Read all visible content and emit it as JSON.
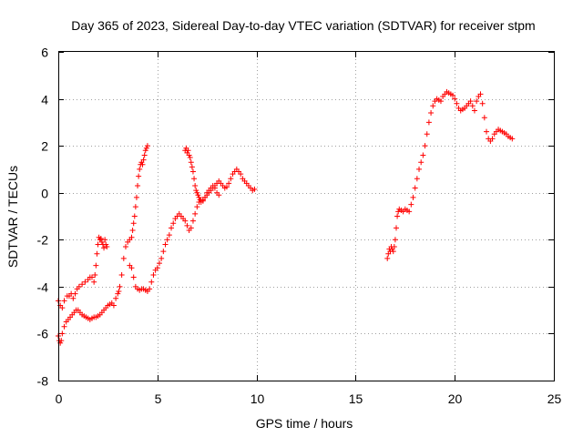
{
  "chart_data": {
    "type": "scatter",
    "title": "Day 365 of 2023, Sidereal Day-to-day VTEC variation (SDTVAR) for receiver stpm",
    "xlabel": "GPS time / hours",
    "ylabel": "SDTVAR / TECUs",
    "xlim": [
      0,
      25
    ],
    "ylim": [
      -8,
      6
    ],
    "xticks": [
      0,
      5,
      10,
      15,
      20,
      25
    ],
    "yticks": [
      -8,
      -6,
      -4,
      -2,
      0,
      2,
      4,
      6
    ],
    "xtick_labels": [
      "0",
      "5",
      "10",
      "15",
      "20",
      "25"
    ],
    "ytick_labels": [
      "-8",
      "-6",
      "-4",
      "-2",
      "0",
      "2",
      "4",
      "6"
    ],
    "grid": true,
    "legend": "none",
    "marker": "plus",
    "color": "#ff0000",
    "series": [
      {
        "x": [
          0.0,
          0.1,
          0.2,
          0.3,
          0.45,
          0.55,
          0.65,
          0.75,
          0.85,
          0.95,
          1.05,
          1.2,
          1.35,
          1.5,
          1.6,
          1.7,
          1.8,
          1.85,
          1.9,
          1.95,
          2.0,
          2.05,
          2.1,
          2.15,
          2.2,
          2.25,
          2.3,
          2.35,
          2.4,
          2.45
        ],
        "y": [
          -4.6,
          -4.8,
          -4.9,
          -4.6,
          -4.4,
          -4.4,
          -4.3,
          -4.5,
          -4.3,
          -4.1,
          -4.0,
          -3.9,
          -3.8,
          -3.7,
          -3.6,
          -3.6,
          -3.8,
          -3.5,
          -3.1,
          -2.6,
          -2.2,
          -1.9,
          -2.0,
          -1.95,
          -2.1,
          -2.2,
          -2.35,
          -2.0,
          -2.2,
          -2.3
        ]
      },
      {
        "x": [
          0.0,
          0.05,
          0.1,
          0.15,
          0.2,
          0.3,
          0.4,
          0.5,
          0.6,
          0.7,
          0.8,
          0.9,
          1.0,
          1.1,
          1.2,
          1.3,
          1.4,
          1.5,
          1.6,
          1.7,
          1.8,
          1.9,
          2.0,
          2.1,
          2.2,
          2.3,
          2.4,
          2.5,
          2.6,
          2.7,
          2.8,
          2.9,
          3.0,
          3.05,
          3.1,
          3.2,
          3.3,
          3.4,
          3.5,
          3.6,
          3.7,
          3.75,
          3.8,
          3.85,
          3.9,
          3.95,
          4.0,
          4.05,
          4.1,
          4.15,
          4.2,
          4.25,
          4.3,
          4.35,
          4.4,
          4.45,
          4.5
        ],
        "y": [
          -6.1,
          -6.3,
          -6.4,
          -6.3,
          -6.0,
          -5.7,
          -5.5,
          -5.4,
          -5.3,
          -5.2,
          -5.1,
          -5.0,
          -5.0,
          -5.1,
          -5.2,
          -5.25,
          -5.3,
          -5.35,
          -5.4,
          -5.35,
          -5.3,
          -5.3,
          -5.25,
          -5.2,
          -5.1,
          -5.0,
          -4.9,
          -4.8,
          -4.75,
          -4.7,
          -4.8,
          -4.5,
          -4.3,
          -4.2,
          -4.0,
          -3.5,
          -2.8,
          -2.3,
          -2.1,
          -2.0,
          -1.9,
          -1.6,
          -1.3,
          -1.0,
          -0.6,
          -0.2,
          0.3,
          0.7,
          1.0,
          1.2,
          1.3,
          1.2,
          1.4,
          1.6,
          1.8,
          1.9,
          2.0
        ]
      },
      {
        "x": [
          3.6,
          3.7,
          3.8,
          3.9,
          4.0,
          4.1,
          4.2,
          4.3,
          4.4,
          4.5,
          4.6,
          4.7,
          4.8,
          4.9,
          5.0,
          5.1,
          5.2,
          5.3,
          5.4,
          5.5,
          5.6,
          5.7,
          5.8,
          5.9,
          6.0,
          6.1,
          6.2,
          6.3,
          6.4,
          6.5,
          6.6,
          6.7,
          6.8,
          6.9,
          7.0,
          7.1,
          7.2,
          7.3,
          7.4,
          7.5,
          7.6,
          7.7,
          7.8,
          7.9,
          8.0,
          8.1,
          8.2,
          8.3,
          8.4,
          8.5,
          8.6,
          8.7,
          8.8,
          8.9,
          9.0,
          9.1,
          9.2,
          9.3,
          9.4,
          9.5,
          9.6,
          9.7,
          9.8,
          9.9
        ],
        "y": [
          -3.1,
          -3.2,
          -3.6,
          -4.0,
          -4.1,
          -4.15,
          -4.1,
          -4.1,
          -4.15,
          -4.2,
          -4.1,
          -3.8,
          -3.5,
          -3.3,
          -3.2,
          -3.0,
          -2.8,
          -2.5,
          -2.2,
          -2.0,
          -1.8,
          -1.5,
          -1.3,
          -1.1,
          -1.0,
          -0.9,
          -1.0,
          -1.1,
          -1.2,
          -1.4,
          -1.6,
          -1.5,
          -1.2,
          -0.9,
          -0.6,
          -0.4,
          -0.3,
          -0.35,
          -0.2,
          -0.1,
          0.0,
          0.1,
          0.2,
          0.3,
          0.4,
          0.5,
          0.4,
          0.3,
          0.2,
          0.25,
          0.4,
          0.6,
          0.8,
          0.9,
          1.0,
          0.9,
          0.8,
          0.6,
          0.5,
          0.4,
          0.3,
          0.2,
          0.1,
          0.15
        ]
      },
      {
        "x": [
          6.4,
          6.45,
          6.5,
          6.55,
          6.6,
          6.65,
          6.7,
          6.75,
          6.8,
          6.85,
          6.9,
          6.95,
          7.0,
          7.05,
          7.1,
          7.15,
          7.2,
          7.3,
          7.4,
          7.5,
          7.6,
          7.7,
          7.8,
          7.9,
          8.0,
          8.1
        ],
        "y": [
          1.8,
          1.9,
          1.7,
          1.8,
          1.6,
          1.5,
          1.3,
          1.1,
          0.9,
          0.6,
          0.3,
          0.1,
          0.0,
          -0.1,
          -0.2,
          -0.3,
          -0.4,
          -0.3,
          -0.2,
          0.0,
          0.1,
          0.2,
          0.3,
          0.2,
          0.0,
          -0.1
        ]
      },
      {
        "x": [
          16.6,
          16.65,
          16.7,
          16.75,
          16.8,
          16.85,
          16.9,
          16.95,
          17.0,
          17.05,
          17.1,
          17.15,
          17.2,
          17.3,
          17.4,
          17.5,
          17.6,
          17.7,
          17.8,
          17.9,
          18.0,
          18.1,
          18.2,
          18.3,
          18.4,
          18.5,
          18.6,
          18.7,
          18.8,
          18.9,
          19.0,
          19.1,
          19.2,
          19.3,
          19.4,
          19.5,
          19.6,
          19.7,
          19.8,
          19.9,
          20.0,
          20.1,
          20.2,
          20.3,
          20.4,
          20.5,
          20.6,
          20.7,
          20.8,
          20.9,
          21.0,
          21.1,
          21.2,
          21.3,
          21.4,
          21.5,
          21.6,
          21.7,
          21.8,
          21.9,
          22.0,
          22.1,
          22.2,
          22.3,
          22.4,
          22.5,
          22.6,
          22.7,
          22.8,
          22.9
        ],
        "y": [
          -2.8,
          -2.6,
          -2.4,
          -2.5,
          -2.3,
          -2.4,
          -2.5,
          -2.3,
          -2.0,
          -1.5,
          -1.0,
          -0.8,
          -0.7,
          -0.75,
          -0.8,
          -0.7,
          -0.75,
          -0.8,
          -0.5,
          -0.2,
          0.2,
          0.6,
          1.0,
          1.3,
          1.6,
          2.0,
          2.5,
          3.0,
          3.4,
          3.7,
          3.9,
          4.0,
          3.95,
          3.9,
          4.1,
          4.2,
          4.3,
          4.25,
          4.2,
          4.15,
          4.0,
          3.8,
          3.6,
          3.5,
          3.55,
          3.6,
          3.7,
          3.8,
          3.9,
          3.7,
          3.5,
          3.9,
          4.1,
          4.2,
          3.8,
          3.2,
          2.6,
          2.3,
          2.2,
          2.3,
          2.5,
          2.6,
          2.7,
          2.65,
          2.6,
          2.55,
          2.5,
          2.4,
          2.35,
          2.3
        ]
      }
    ]
  }
}
